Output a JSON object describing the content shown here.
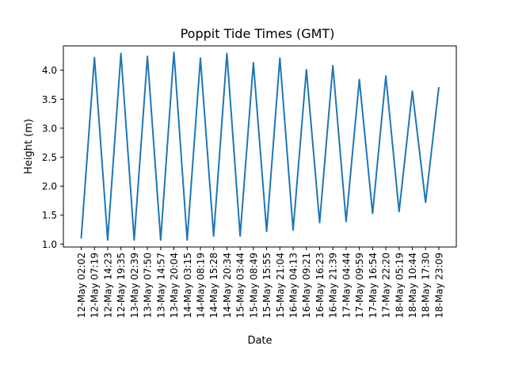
{
  "chart_data": {
    "type": "line",
    "title": "Poppit Tide Times (GMT)",
    "xlabel": "Date",
    "ylabel": "Height (m)",
    "ylim": [
      0.95,
      4.42
    ],
    "yticks": [
      "1.0",
      "1.5",
      "2.0",
      "2.5",
      "3.0",
      "3.5",
      "4.0"
    ],
    "grid": false,
    "legend": "none",
    "line_color": "#1f77b4",
    "categories": [
      "12-May 02:02",
      "12-May 07:19",
      "12-May 14:23",
      "12-May 19:35",
      "13-May 02:39",
      "13-May 07:50",
      "13-May 14:57",
      "13-May 20:04",
      "14-May 03:15",
      "14-May 08:19",
      "14-May 15:28",
      "14-May 20:34",
      "15-May 03:44",
      "15-May 08:49",
      "15-May 15:55",
      "15-May 21:04",
      "16-May 04:13",
      "16-May 09:21",
      "16-May 16:23",
      "16-May 21:39",
      "17-May 04:44",
      "17-May 09:59",
      "17-May 16:54",
      "17-May 22:20",
      "18-May 05:19",
      "18-May 10:44",
      "18-May 17:30",
      "18-May 23:09"
    ],
    "series": [
      {
        "values": [
          1.1,
          4.22,
          1.07,
          4.29,
          1.07,
          4.24,
          1.07,
          4.31,
          1.07,
          4.21,
          1.14,
          4.29,
          1.14,
          4.13,
          1.22,
          4.21,
          1.24,
          4.01,
          1.37,
          4.08,
          1.39,
          3.84,
          1.53,
          3.9,
          1.56,
          3.64,
          1.72,
          3.71
        ]
      }
    ]
  }
}
